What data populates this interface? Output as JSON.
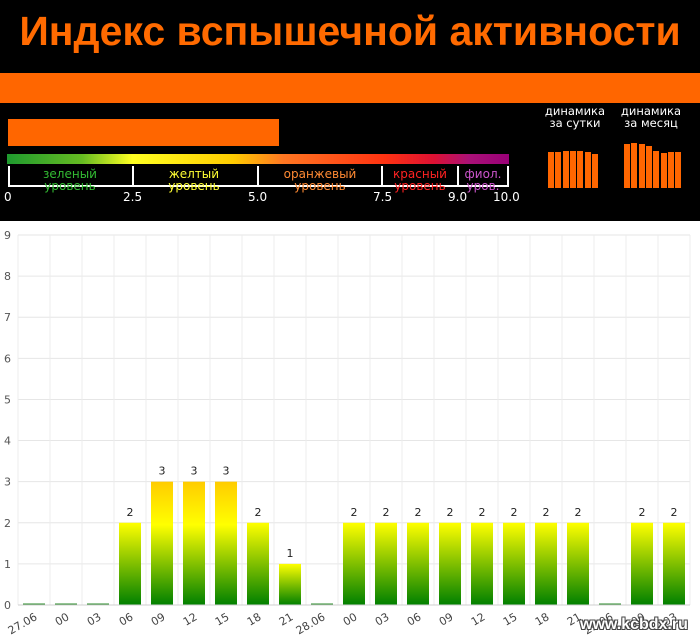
{
  "header": {
    "title": "Индекс вспышечной активности",
    "current_index": 5.4,
    "scale": {
      "ticks": [
        "0",
        "2.5",
        "5.0",
        "7.5",
        "9.0",
        "10.0"
      ],
      "levels": [
        {
          "line1": "зеленый",
          "line2": "уровень",
          "color": "#33bb33"
        },
        {
          "line1": "желтый",
          "line2": "уровень",
          "color": "#ffff33"
        },
        {
          "line1": "оранжевый",
          "line2": "уровень",
          "color": "#ff8a33"
        },
        {
          "line1": "красный",
          "line2": "уровень",
          "color": "#ff2222"
        },
        {
          "line1": "фиол.",
          "line2": "уров.",
          "color": "#cc55cc"
        }
      ]
    },
    "dynamics": {
      "day_title_1": "динамика",
      "day_title_2": "за сутки",
      "month_title_1": "динамика",
      "month_title_2": "за месяц",
      "day_bars": [
        0.6,
        0.6,
        0.62,
        0.62,
        0.61,
        0.6,
        0.56
      ],
      "month_bars": [
        0.73,
        0.75,
        0.73,
        0.7,
        0.62,
        0.58,
        0.6,
        0.6
      ]
    }
  },
  "chart_data": {
    "type": "bar",
    "categories": [
      "27.06",
      "00",
      "03",
      "06",
      "09",
      "12",
      "15",
      "18",
      "21",
      "28.06",
      "00",
      "03",
      "06",
      "09",
      "12",
      "15",
      "18",
      "21",
      "29.06",
      "00",
      "03"
    ],
    "values": [
      0,
      0,
      0,
      2,
      3,
      3,
      3,
      2,
      1,
      0,
      2,
      2,
      2,
      2,
      2,
      2,
      2,
      2,
      0,
      2,
      2
    ],
    "ylim": [
      0,
      9
    ],
    "yticks": [
      "0",
      "1",
      "2",
      "3",
      "4",
      "5",
      "6",
      "7",
      "8",
      "9"
    ],
    "grid": true,
    "colors": {
      "top": "#ffff00",
      "bottom": "#008000",
      "high_top": "#ffcc00"
    }
  },
  "watermark": "www.kcbdx.ru"
}
